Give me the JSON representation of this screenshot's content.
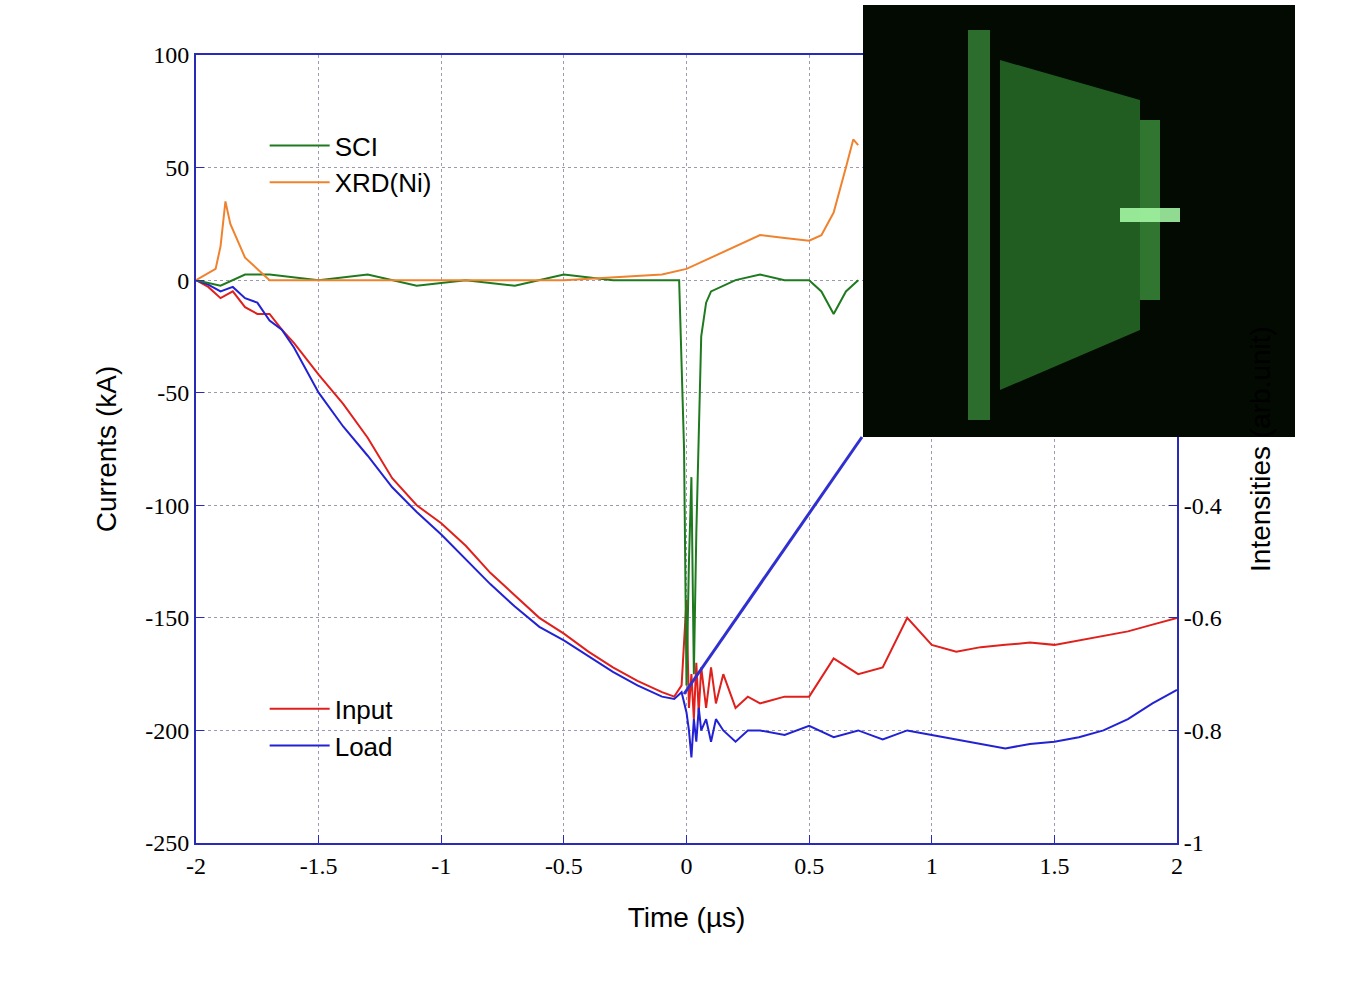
{
  "chart_data": {
    "type": "line",
    "xlabel": "Time (µs)",
    "ylabel": "Currents (kA)",
    "y2label": "Intensities (arb.unit)",
    "xlim": [
      -2,
      2
    ],
    "xticks": [
      -2,
      -1.5,
      -1,
      -0.5,
      0,
      0.5,
      1,
      1.5,
      2
    ],
    "ylim": [
      -250,
      100
    ],
    "yticks": [
      -250,
      -200,
      -150,
      -100,
      -50,
      0,
      50,
      100
    ],
    "y2lim": [
      -1,
      0.4
    ],
    "y2ticks": [
      -1,
      -0.8,
      -0.6,
      -0.4
    ],
    "grid": true,
    "legend": "left",
    "series": [
      {
        "name": "SCI",
        "color": "#1f7a1f",
        "axis": "y2",
        "x": [
          -2,
          -1.9,
          -1.8,
          -1.7,
          -1.5,
          -1.3,
          -1.1,
          -0.9,
          -0.7,
          -0.5,
          -0.3,
          -0.1,
          -0.03,
          -0.01,
          0,
          0.01,
          0.02,
          0.03,
          0.04,
          0.06,
          0.08,
          0.1,
          0.15,
          0.2,
          0.3,
          0.4,
          0.5,
          0.55,
          0.6,
          0.65,
          0.7
        ],
        "values": [
          0,
          -0.01,
          0.01,
          0.01,
          0,
          0.01,
          -0.01,
          0,
          -0.01,
          0.01,
          0,
          0,
          0,
          -0.3,
          -0.72,
          -0.5,
          -0.35,
          -0.7,
          -0.45,
          -0.1,
          -0.04,
          -0.02,
          -0.01,
          0,
          0.01,
          0,
          0,
          -0.02,
          -0.06,
          -0.02,
          0
        ]
      },
      {
        "name": "XRD(Ni)",
        "color": "#f0822e",
        "axis": "y2",
        "x": [
          -2,
          -1.92,
          -1.9,
          -1.88,
          -1.86,
          -1.84,
          -1.8,
          -1.75,
          -1.7,
          -1.5,
          -1,
          -0.5,
          -0.1,
          0,
          0.1,
          0.2,
          0.3,
          0.4,
          0.5,
          0.55,
          0.6,
          0.65,
          0.68,
          0.7
        ],
        "values": [
          0,
          0.02,
          0.06,
          0.14,
          0.1,
          0.08,
          0.04,
          0.02,
          0,
          0,
          0,
          0,
          0.01,
          0.02,
          0.04,
          0.06,
          0.08,
          0.075,
          0.07,
          0.08,
          0.12,
          0.2,
          0.25,
          0.24
        ]
      },
      {
        "name": "Input",
        "color": "#e0201c",
        "x": [
          -2,
          -1.95,
          -1.9,
          -1.85,
          -1.8,
          -1.75,
          -1.7,
          -1.65,
          -1.6,
          -1.55,
          -1.5,
          -1.4,
          -1.3,
          -1.2,
          -1.1,
          -1.0,
          -0.9,
          -0.8,
          -0.7,
          -0.6,
          -0.5,
          -0.4,
          -0.3,
          -0.2,
          -0.1,
          -0.05,
          -0.02,
          0,
          0.01,
          0.02,
          0.03,
          0.04,
          0.05,
          0.06,
          0.08,
          0.1,
          0.12,
          0.15,
          0.2,
          0.25,
          0.3,
          0.4,
          0.5,
          0.6,
          0.7,
          0.8,
          0.9,
          1.0,
          1.1,
          1.2,
          1.3,
          1.4,
          1.5,
          1.6,
          1.7,
          1.8,
          1.9,
          2.0
        ],
        "values": [
          0,
          -3,
          -8,
          -5,
          -12,
          -15,
          -15,
          -22,
          -28,
          -35,
          -42,
          -55,
          -70,
          -88,
          -100,
          -108,
          -118,
          -130,
          -140,
          -150,
          -157,
          -165,
          -172,
          -178,
          -183,
          -185,
          -180,
          -142,
          -190,
          -175,
          -195,
          -170,
          -192,
          -172,
          -190,
          -172,
          -188,
          -175,
          -190,
          -185,
          -188,
          -185,
          -185,
          -168,
          -175,
          -172,
          -150,
          -162,
          -165,
          -163,
          -162,
          -161,
          -162,
          -160,
          -158,
          -156,
          -153,
          -150
        ]
      },
      {
        "name": "Load",
        "color": "#2222d4",
        "x": [
          -2,
          -1.95,
          -1.9,
          -1.85,
          -1.8,
          -1.75,
          -1.7,
          -1.65,
          -1.6,
          -1.55,
          -1.5,
          -1.4,
          -1.3,
          -1.2,
          -1.1,
          -1.0,
          -0.9,
          -0.8,
          -0.7,
          -0.6,
          -0.5,
          -0.4,
          -0.3,
          -0.2,
          -0.1,
          -0.05,
          -0.02,
          0,
          0.01,
          0.02,
          0.03,
          0.04,
          0.05,
          0.06,
          0.08,
          0.1,
          0.12,
          0.15,
          0.2,
          0.25,
          0.3,
          0.4,
          0.5,
          0.6,
          0.7,
          0.8,
          0.9,
          1.0,
          1.1,
          1.2,
          1.3,
          1.4,
          1.5,
          1.6,
          1.7,
          1.8,
          1.9,
          2.0
        ],
        "values": [
          0,
          -2,
          -5,
          -3,
          -8,
          -10,
          -18,
          -22,
          -30,
          -40,
          -50,
          -65,
          -78,
          -92,
          -103,
          -113,
          -124,
          -135,
          -145,
          -154,
          -160,
          -167,
          -174,
          -180,
          -185,
          -186,
          -183,
          -192,
          -200,
          -212,
          -195,
          -205,
          -190,
          -200,
          -195,
          -205,
          -195,
          -200,
          -205,
          -200,
          -200,
          -202,
          -198,
          -203,
          -200,
          -204,
          -200,
          -202,
          -204,
          -206,
          -208,
          -206,
          -205,
          -203,
          -200,
          -195,
          -188,
          -182
        ]
      }
    ]
  }
}
